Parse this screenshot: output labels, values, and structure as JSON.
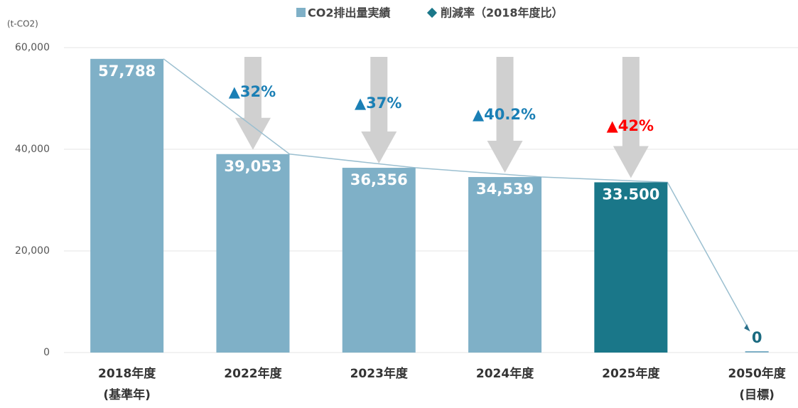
{
  "chart_data": {
    "type": "bar",
    "unit_label": "(t-CO2)",
    "categories": [
      [
        "2018年度",
        "(基準年)"
      ],
      [
        "2022年度"
      ],
      [
        "2023年度"
      ],
      [
        "2024年度"
      ],
      [
        "2025年度"
      ],
      [
        "2050年度",
        "(目標)"
      ]
    ],
    "series": [
      {
        "name": "CO2排出量実績",
        "color": "#7fb0c7",
        "colors": [
          "#7fb0c7",
          "#7fb0c7",
          "#7fb0c7",
          "#7fb0c7",
          "#1a7789",
          "#7fb0c7"
        ],
        "values": [
          57788,
          39053,
          36356,
          34539,
          33500,
          0
        ],
        "value_labels": [
          "57,788",
          "39,053",
          "36,356",
          "34,539",
          "33.500",
          "0"
        ]
      },
      {
        "name": "削減率（2018年度比）",
        "color": "#1a7789",
        "colors": [
          null,
          "#1a7fb5",
          "#1a7fb5",
          "#1a7fb5",
          "#ff0000",
          null
        ],
        "values": [
          null,
          32,
          37,
          40.2,
          42,
          null
        ],
        "value_labels": [
          null,
          "▲32%",
          "▲37%",
          "▲40.2%",
          "▲42%",
          null
        ]
      }
    ],
    "ylim": [
      0,
      60000
    ],
    "yticks": [
      0,
      {
        "value": 20000,
        "label": "20,000"
      },
      {
        "value": 40000,
        "label": "40,000"
      },
      {
        "value": 60000,
        "label": "60,000"
      }
    ],
    "grid": true
  }
}
